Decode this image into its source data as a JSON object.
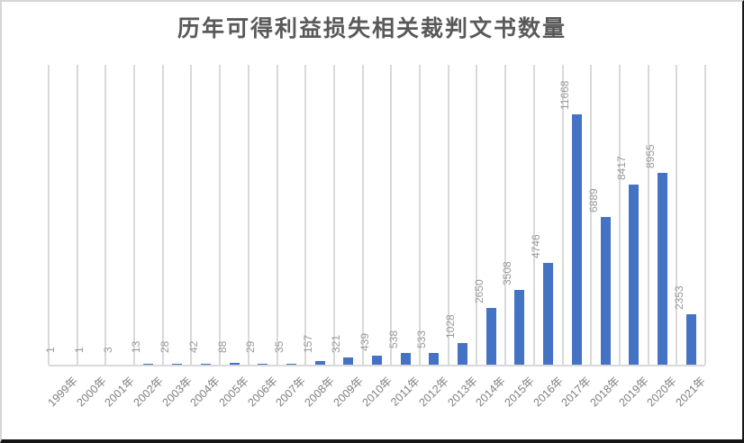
{
  "title": "历年可得利益损失相关裁判文书数量",
  "colors": {
    "bar": "#4472C4",
    "gridline": "#D9D9D9",
    "axis_line": "#D9D9D9",
    "title_text": "#595959",
    "data_label_text": "#9A9A9A",
    "tick_label_text": "#7F7F7F",
    "frame_light": "#D6D6D6",
    "frame_dark": "#161616",
    "background": "#FFFFFF"
  },
  "chart_data": {
    "type": "bar",
    "title": "历年可得利益损失相关裁判文书数量",
    "categories": [
      "1999年",
      "2000年",
      "2001年",
      "2002年",
      "2003年",
      "2004年",
      "2005年",
      "2006年",
      "2007年",
      "2008年",
      "2009年",
      "2010年",
      "2011年",
      "2012年",
      "2013年",
      "2014年",
      "2015年",
      "2016年",
      "2017年",
      "2018年",
      "2019年",
      "2020年",
      "2021年"
    ],
    "values": [
      1,
      1,
      3,
      13,
      28,
      42,
      88,
      29,
      35,
      157,
      321,
      439,
      538,
      533,
      1028,
      2650,
      3508,
      4746,
      11668,
      6889,
      8417,
      8955,
      2353
    ],
    "xlabel": "",
    "ylabel": "",
    "ylim": [
      0,
      14000
    ],
    "yaxis_visible": false,
    "grid": "vertical-only",
    "legend": "none",
    "data_labels": "outside-end-rotated-90",
    "xtick_rotation": 45,
    "bar_color": "#4472C4"
  }
}
